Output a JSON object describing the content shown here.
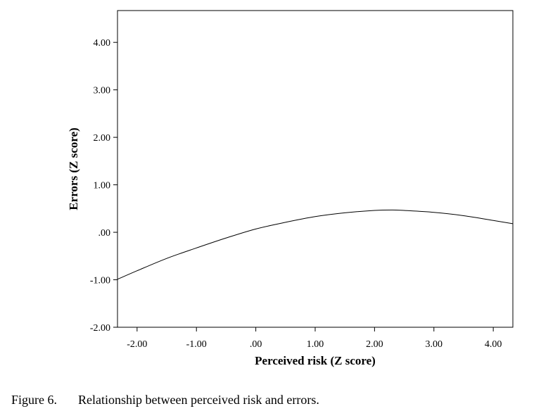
{
  "chart_data": {
    "type": "line",
    "title": "",
    "xlabel": "Perceived risk (Z score)",
    "ylabel": "Errors (Z score)",
    "xlim": [
      -2.33,
      4.33
    ],
    "ylim": [
      -2.0,
      4.67
    ],
    "xticks": [
      -2,
      -1,
      0,
      1,
      2,
      3,
      4
    ],
    "xtick_labels": [
      "-2.00",
      "-1.00",
      ".00",
      "1.00",
      "2.00",
      "3.00",
      "4.00"
    ],
    "yticks": [
      -2,
      -1,
      0,
      1,
      2,
      3,
      4
    ],
    "ytick_labels": [
      "-2.00",
      "-1.00",
      ".00",
      "1.00",
      "2.00",
      "3.00",
      "4.00"
    ],
    "grid": false,
    "series": [
      {
        "name": "",
        "x": [
          -2.33,
          -2.0,
          -1.5,
          -1.0,
          -0.5,
          0.0,
          0.5,
          1.0,
          1.5,
          2.0,
          2.3,
          2.5,
          3.0,
          3.5,
          4.0,
          4.33
        ],
        "y": [
          -0.99,
          -0.81,
          -0.55,
          -0.33,
          -0.12,
          0.07,
          0.21,
          0.33,
          0.41,
          0.46,
          0.47,
          0.46,
          0.42,
          0.35,
          0.25,
          0.18
        ]
      }
    ]
  },
  "caption": {
    "label": "Figure 6.",
    "text": "Relationship between perceived risk and errors."
  }
}
